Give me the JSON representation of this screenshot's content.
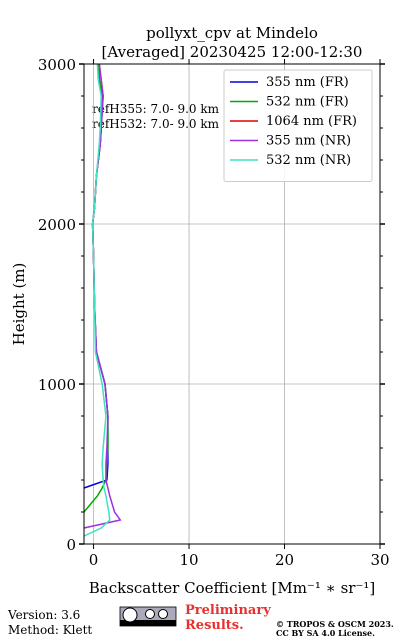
{
  "chart_data": {
    "type": "line",
    "title": [
      "pollyxt_cpv at Mindelo",
      "[Averaged] 20230425 12:00-12:30"
    ],
    "xlabel": "Backscatter Coefficient [Mm⁻¹ ∗ sr⁻¹]",
    "ylabel": "Height (m)",
    "annotations": [
      "refH355:  7.0- 9.0 km",
      "refH532:  7.0- 9.0 km"
    ],
    "xlim": [
      -1,
      30
    ],
    "xticks": [
      0,
      10,
      20,
      30
    ],
    "ylim": [
      0,
      3000
    ],
    "yticks": [
      0,
      1000,
      2000,
      3000
    ],
    "yminorticks": [
      200,
      400,
      600,
      800,
      1200,
      1400,
      1600,
      1800,
      2200,
      2400,
      2600,
      2800
    ],
    "grid": true,
    "legend": "upper right",
    "heights": [
      50,
      100,
      150,
      200,
      300,
      350,
      400,
      500,
      600,
      800,
      1000,
      1200,
      1500,
      1800,
      2000,
      2100,
      2300,
      2500,
      2600,
      2800,
      2900,
      3000
    ],
    "series": [
      {
        "name": "355 nm (FR)",
        "color": "#0000dd",
        "values": [
          null,
          null,
          null,
          null,
          null,
          -1,
          1.4,
          1.5,
          1.5,
          1.5,
          1.2,
          0.3,
          0.1,
          0,
          -0.1,
          0.1,
          0.3,
          0.7,
          0.8,
          0.9,
          0.6,
          0.5
        ]
      },
      {
        "name": "532 nm (FR)",
        "color": "#00aa00",
        "values": [
          null,
          null,
          null,
          -1,
          0.4,
          0.9,
          1.3,
          1.4,
          1.5,
          1.5,
          1.2,
          0.3,
          0.1,
          0,
          -0.1,
          0.1,
          0.3,
          0.7,
          0.8,
          0.9,
          0.6,
          0.5
        ]
      },
      {
        "name": "1064 nm (FR)",
        "color": "#dd0000",
        "values": [
          null,
          null,
          null,
          null,
          null,
          null,
          null,
          null,
          null,
          null,
          null,
          null,
          0.1,
          0,
          -0.1,
          0.1,
          0.3,
          0.7,
          0.8,
          1.0,
          0.8,
          0.6
        ]
      },
      {
        "name": "355 nm (NR)",
        "color": "#9b30e0",
        "values": [
          null,
          -1,
          2.8,
          2.2,
          1.7,
          1.5,
          1.3,
          1.3,
          1.4,
          1.5,
          1.2,
          0.3,
          0.1,
          0,
          -0.1,
          0.1,
          0.3,
          0.7,
          0.8,
          1.0,
          0.8,
          0.6
        ]
      },
      {
        "name": "532 nm (NR)",
        "color": "#40e0c0",
        "values": [
          -1,
          0.8,
          1.7,
          1.6,
          1.3,
          1.1,
          1.0,
          0.9,
          1.0,
          1.3,
          0.9,
          0.2,
          0.1,
          0,
          -0.1,
          0.1,
          0.3,
          0.6,
          0.7,
          0.8,
          0.5,
          0.4
        ]
      }
    ]
  },
  "footer": {
    "version": "Version: 3.6",
    "method": "Method: Klett",
    "preliminary": [
      "Preliminary",
      "Results."
    ],
    "copyright": [
      "© TROPOS & OSCM 2023.",
      "CC BY SA 4.0 License."
    ]
  }
}
